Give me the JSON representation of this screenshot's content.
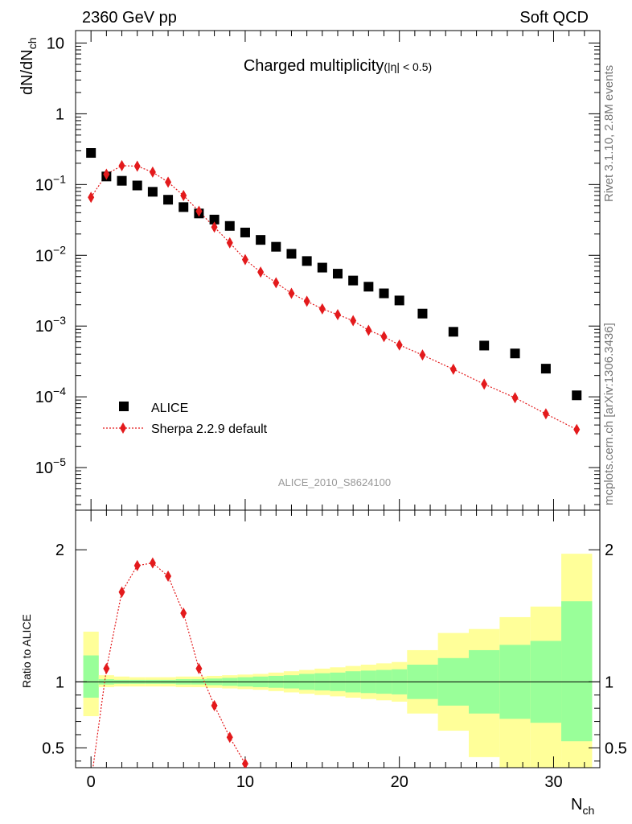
{
  "header": {
    "left": "2360 GeV pp",
    "right": "Soft QCD"
  },
  "side_labels": {
    "rivet": "Rivet 3.1.10,  2.8M events",
    "mcplots": "mcplots.cern.ch [arXiv:1306.3436]"
  },
  "chart_data": {
    "type": "scatter",
    "title_main": "Charged multiplicity",
    "title_sub": "(|η| < 0.5)",
    "analysis_label": "ALICE_2010_S8624100",
    "xlabel_main": "N",
    "xlabel_sub": "ch",
    "ylabel_main": "dN/dN",
    "ylabel_sub": "ch",
    "ratio_ylabel": "Ratio to ALICE",
    "xlim": [
      -1,
      33
    ],
    "ylim_log": [
      2.5e-06,
      15
    ],
    "ratio_ylim": [
      0.35,
      2.3
    ],
    "x_ticks": [
      "0",
      "10",
      "20",
      "30"
    ],
    "y_ticks": [
      {
        "base": "10",
        "exp": "",
        "value": 10
      },
      {
        "base": "1",
        "exp": "",
        "value": 1
      },
      {
        "base": "10",
        "exp": "−1",
        "value": 0.1
      },
      {
        "base": "10",
        "exp": "−2",
        "value": 0.01
      },
      {
        "base": "10",
        "exp": "−3",
        "value": 0.001
      },
      {
        "base": "10",
        "exp": "−4",
        "value": 0.0001
      },
      {
        "base": "10",
        "exp": "−5",
        "value": 1e-05
      }
    ],
    "ratio_ticks": [
      "0.5",
      "1",
      "2"
    ],
    "legend": {
      "position": "bottom-left",
      "entries": [
        "ALICE",
        "Sherpa 2.2.9 default"
      ]
    },
    "series": [
      {
        "name": "ALICE",
        "marker": "square",
        "color": "#000000",
        "points": [
          [
            0,
            0.28
          ],
          [
            1,
            0.13
          ],
          [
            2,
            0.113
          ],
          [
            3,
            0.097
          ],
          [
            4,
            0.079
          ],
          [
            5,
            0.061
          ],
          [
            6,
            0.048
          ],
          [
            7,
            0.039
          ],
          [
            8,
            0.032
          ],
          [
            9,
            0.026
          ],
          [
            10,
            0.021
          ],
          [
            11,
            0.0165
          ],
          [
            12,
            0.0132
          ],
          [
            13,
            0.0105
          ],
          [
            14,
            0.0083
          ],
          [
            15,
            0.0067
          ],
          [
            16,
            0.0055
          ],
          [
            17,
            0.0044
          ],
          [
            18,
            0.0036
          ],
          [
            19,
            0.0029
          ],
          [
            20,
            0.0023
          ],
          [
            21.5,
            0.0015
          ],
          [
            23.5,
            0.00083
          ],
          [
            25.5,
            0.00053
          ],
          [
            27.5,
            0.00041
          ],
          [
            29.5,
            0.00025
          ],
          [
            31.5,
            0.000105
          ]
        ]
      },
      {
        "name": "Sherpa 2.2.9 default",
        "marker": "diamond",
        "color": "#e31a1c",
        "points": [
          [
            0,
            0.066
          ],
          [
            1,
            0.14
          ],
          [
            2,
            0.185
          ],
          [
            3,
            0.182
          ],
          [
            4,
            0.15
          ],
          [
            5,
            0.108
          ],
          [
            6,
            0.07
          ],
          [
            7,
            0.042
          ],
          [
            8,
            0.025
          ],
          [
            9,
            0.015
          ],
          [
            10,
            0.0087
          ],
          [
            11,
            0.0058
          ],
          [
            12,
            0.0041
          ],
          [
            13,
            0.0029
          ],
          [
            14,
            0.00224
          ],
          [
            15,
            0.00175
          ],
          [
            16,
            0.00145
          ],
          [
            17,
            0.00119
          ],
          [
            18,
            0.00087
          ],
          [
            19,
            0.00071
          ],
          [
            20,
            0.00054
          ],
          [
            21.5,
            0.00039
          ],
          [
            23.5,
            0.000245
          ],
          [
            25.5,
            0.000151
          ],
          [
            27.5,
            9.7e-05
          ],
          [
            29.5,
            5.75e-05
          ],
          [
            31.5,
            3.45e-05
          ]
        ]
      }
    ],
    "ratio_series": {
      "name": "Sherpa 2.2.9 default",
      "points": [
        [
          0,
          0.24
        ],
        [
          1,
          1.1
        ],
        [
          2,
          1.68
        ],
        [
          3,
          1.88
        ],
        [
          4,
          1.9
        ],
        [
          5,
          1.8
        ],
        [
          6,
          1.52
        ],
        [
          7,
          1.1
        ],
        [
          8,
          0.82
        ],
        [
          9,
          0.58
        ],
        [
          10,
          0.38
        ]
      ]
    },
    "bands": [
      {
        "x0": -0.5,
        "x1": 0.5,
        "yellow": [
          0.74,
          1.38
        ],
        "green": [
          0.88,
          1.2
        ]
      },
      {
        "x0": 0.5,
        "x1": 1.5,
        "yellow": [
          0.96,
          1.05
        ],
        "green": [
          0.98,
          1.02
        ]
      },
      {
        "x0": 1.5,
        "x1": 2.5,
        "yellow": [
          0.965,
          1.04
        ],
        "green": [
          0.985,
          1.015
        ]
      },
      {
        "x0": 2.5,
        "x1": 3.5,
        "yellow": [
          0.965,
          1.035
        ],
        "green": [
          0.985,
          1.015
        ]
      },
      {
        "x0": 3.5,
        "x1": 4.5,
        "yellow": [
          0.965,
          1.035
        ],
        "green": [
          0.985,
          1.015
        ]
      },
      {
        "x0": 4.5,
        "x1": 5.5,
        "yellow": [
          0.965,
          1.035
        ],
        "green": [
          0.985,
          1.015
        ]
      },
      {
        "x0": 5.5,
        "x1": 6.5,
        "yellow": [
          0.96,
          1.04
        ],
        "green": [
          0.98,
          1.02
        ]
      },
      {
        "x0": 6.5,
        "x1": 7.5,
        "yellow": [
          0.96,
          1.04
        ],
        "green": [
          0.98,
          1.02
        ]
      },
      {
        "x0": 7.5,
        "x1": 8.5,
        "yellow": [
          0.955,
          1.045
        ],
        "green": [
          0.975,
          1.025
        ]
      },
      {
        "x0": 8.5,
        "x1": 9.5,
        "yellow": [
          0.95,
          1.05
        ],
        "green": [
          0.97,
          1.03
        ]
      },
      {
        "x0": 9.5,
        "x1": 10.5,
        "yellow": [
          0.945,
          1.055
        ],
        "green": [
          0.965,
          1.035
        ]
      },
      {
        "x0": 10.5,
        "x1": 11.5,
        "yellow": [
          0.94,
          1.06
        ],
        "green": [
          0.96,
          1.04
        ]
      },
      {
        "x0": 11.5,
        "x1": 12.5,
        "yellow": [
          0.93,
          1.07
        ],
        "green": [
          0.955,
          1.045
        ]
      },
      {
        "x0": 12.5,
        "x1": 13.5,
        "yellow": [
          0.92,
          1.08
        ],
        "green": [
          0.95,
          1.05
        ]
      },
      {
        "x0": 13.5,
        "x1": 14.5,
        "yellow": [
          0.91,
          1.09
        ],
        "green": [
          0.94,
          1.06
        ]
      },
      {
        "x0": 14.5,
        "x1": 15.5,
        "yellow": [
          0.9,
          1.1
        ],
        "green": [
          0.935,
          1.065
        ]
      },
      {
        "x0": 15.5,
        "x1": 16.5,
        "yellow": [
          0.89,
          1.11
        ],
        "green": [
          0.93,
          1.07
        ]
      },
      {
        "x0": 16.5,
        "x1": 17.5,
        "yellow": [
          0.88,
          1.12
        ],
        "green": [
          0.92,
          1.08
        ]
      },
      {
        "x0": 17.5,
        "x1": 18.5,
        "yellow": [
          0.87,
          1.13
        ],
        "green": [
          0.915,
          1.085
        ]
      },
      {
        "x0": 18.5,
        "x1": 19.5,
        "yellow": [
          0.86,
          1.14
        ],
        "green": [
          0.91,
          1.09
        ]
      },
      {
        "x0": 19.5,
        "x1": 20.5,
        "yellow": [
          0.85,
          1.15
        ],
        "green": [
          0.905,
          1.095
        ]
      },
      {
        "x0": 20.5,
        "x1": 22.5,
        "yellow": [
          0.76,
          1.24
        ],
        "green": [
          0.87,
          1.13
        ]
      },
      {
        "x0": 22.5,
        "x1": 24.5,
        "yellow": [
          0.63,
          1.37
        ],
        "green": [
          0.82,
          1.18
        ]
      },
      {
        "x0": 24.5,
        "x1": 26.5,
        "yellow": [
          0.43,
          1.4
        ],
        "green": [
          0.76,
          1.24
        ]
      },
      {
        "x0": 26.5,
        "x1": 28.5,
        "yellow": [
          0.35,
          1.49
        ],
        "green": [
          0.72,
          1.28
        ]
      },
      {
        "x0": 28.5,
        "x1": 30.5,
        "yellow": [
          0.35,
          1.57
        ],
        "green": [
          0.69,
          1.31
        ]
      },
      {
        "x0": 30.5,
        "x1": 32.5,
        "yellow": [
          0.35,
          1.97
        ],
        "green": [
          0.55,
          1.61
        ]
      }
    ]
  }
}
